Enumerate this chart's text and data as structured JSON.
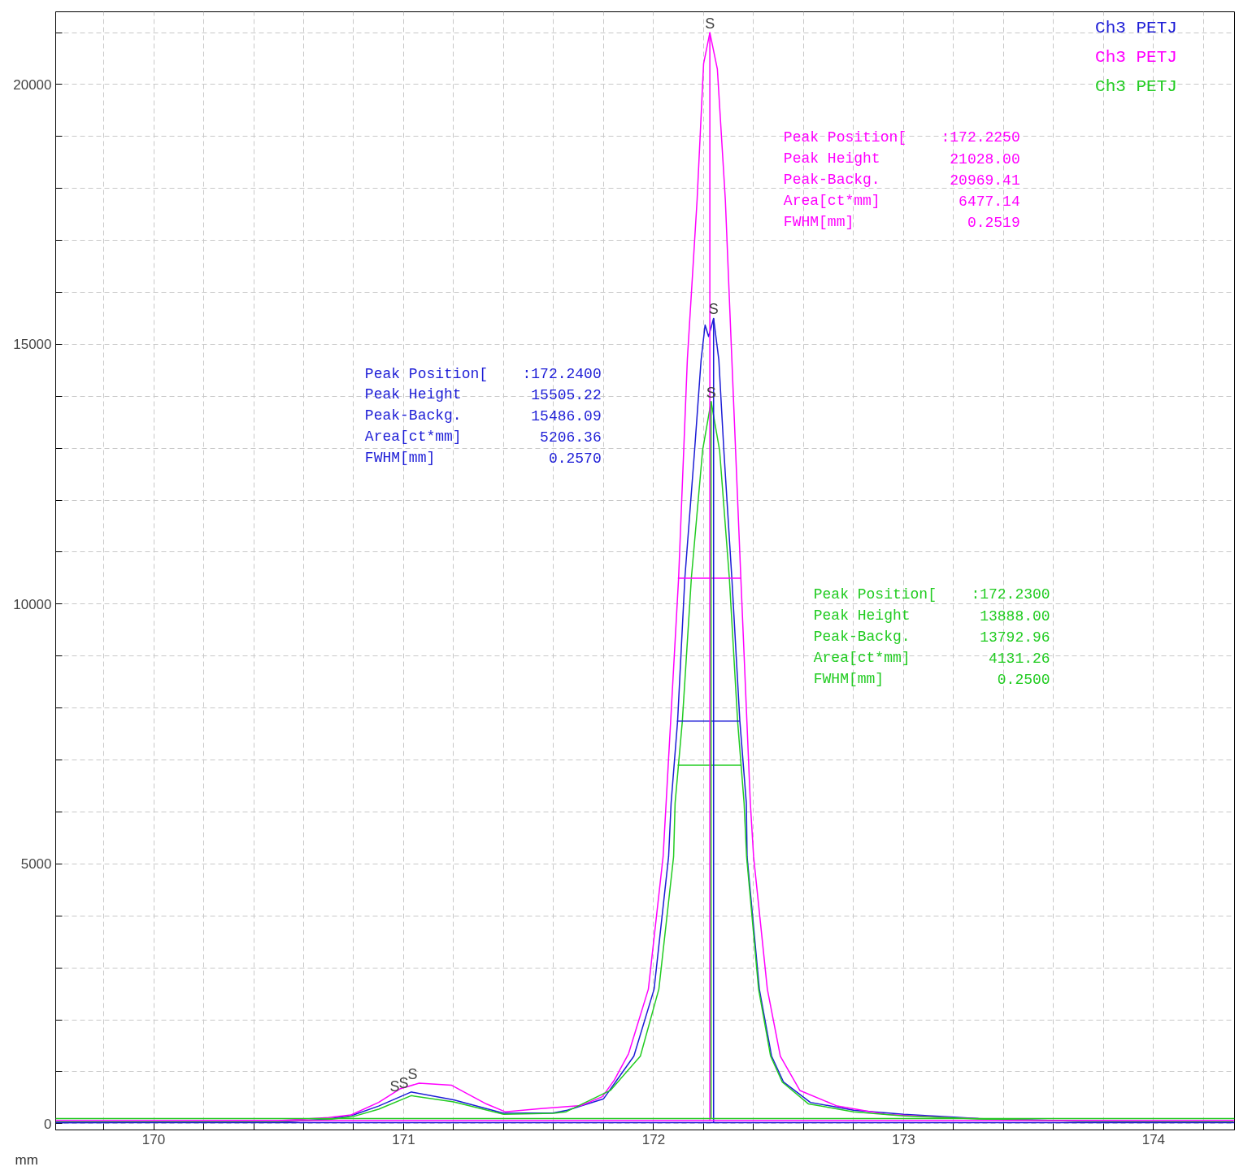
{
  "chart_data": {
    "type": "line",
    "xlabel": "mm",
    "legend": "top right",
    "grid": true,
    "xlim": [
      169.608,
      174.324
    ],
    "ylim": [
      -120,
      21400
    ],
    "xticks": [
      {
        "value": 169.8,
        "label": null
      },
      170,
      {
        "value": 170.2,
        "label": null
      },
      {
        "value": 170.4,
        "label": null
      },
      {
        "value": 170.6,
        "label": null
      },
      {
        "value": 170.8,
        "label": null
      },
      171,
      {
        "value": 171.2,
        "label": null
      },
      {
        "value": 171.4,
        "label": null
      },
      {
        "value": 171.6,
        "label": null
      },
      {
        "value": 171.8,
        "label": null
      },
      172,
      {
        "value": 172.2,
        "label": null
      },
      {
        "value": 172.4,
        "label": null
      },
      {
        "value": 172.6,
        "label": null
      },
      {
        "value": 172.8,
        "label": null
      },
      173,
      {
        "value": 173.2,
        "label": null
      },
      {
        "value": 173.4,
        "label": null
      },
      {
        "value": 173.6,
        "label": null
      },
      {
        "value": 173.8,
        "label": null
      },
      174,
      {
        "value": 174.2,
        "label": null
      }
    ],
    "yticks": [
      0,
      {
        "value": 1000,
        "label": null
      },
      {
        "value": 2000,
        "label": null
      },
      {
        "value": 3000,
        "label": null
      },
      {
        "value": 4000,
        "label": null
      },
      5000,
      {
        "value": 6000,
        "label": null
      },
      {
        "value": 7000,
        "label": null
      },
      {
        "value": 8000,
        "label": null
      },
      {
        "value": 9000,
        "label": null
      },
      10000,
      {
        "value": 11000,
        "label": null
      },
      {
        "value": 12000,
        "label": null
      },
      {
        "value": 13000,
        "label": null
      },
      {
        "value": 14000,
        "label": null
      },
      15000,
      {
        "value": 16000,
        "label": null
      },
      {
        "value": 17000,
        "label": null
      },
      {
        "value": 18000,
        "label": null
      },
      {
        "value": 19000,
        "label": null
      },
      20000,
      {
        "value": 21000,
        "label": null
      }
    ],
    "series": [
      {
        "name": "Ch3  PETJ",
        "color": "#1c1cd6",
        "x": [
          169.61,
          170.5,
          170.7,
          170.8,
          170.9,
          171.03,
          171.2,
          171.4,
          171.6,
          171.655,
          171.8,
          171.921,
          172.002,
          172.06,
          172.07,
          172.096,
          172.125,
          172.164,
          172.19,
          172.206,
          172.22,
          172.24,
          172.261,
          172.281,
          172.313,
          172.345,
          172.371,
          172.374,
          172.423,
          172.472,
          172.52,
          172.627,
          172.8,
          173.0,
          173.3,
          173.7,
          174.32
        ],
        "values": [
          20,
          30,
          90,
          170,
          340,
          610,
          460,
          200,
          210,
          260,
          480,
          1300,
          2590,
          5140,
          6170,
          7750,
          10500,
          12960,
          14700,
          15370,
          15150,
          15500,
          14700,
          12960,
          10500,
          7750,
          6170,
          5140,
          2590,
          1300,
          800,
          410,
          260,
          180,
          100,
          50,
          30
        ]
      },
      {
        "name": "Ch3  PETJ",
        "color": "#ff00ff",
        "x": [
          169.61,
          170.5,
          170.7,
          170.79,
          170.9,
          170.985,
          171.062,
          171.192,
          171.331,
          171.406,
          171.549,
          171.71,
          171.795,
          171.843,
          171.9,
          171.979,
          172.038,
          172.05,
          172.1,
          172.135,
          172.174,
          172.2,
          172.225,
          172.255,
          172.287,
          172.313,
          172.349,
          172.387,
          172.4,
          172.455,
          172.507,
          172.585,
          172.734,
          172.928,
          173.2,
          173.5,
          174.0,
          174.32
        ],
        "values": [
          40,
          60,
          120,
          170,
          410,
          670,
          780,
          740,
          380,
          230,
          290,
          350,
          520,
          840,
          1350,
          2590,
          5140,
          6170,
          10500,
          14710,
          17780,
          20400,
          21000,
          20300,
          17780,
          14710,
          10500,
          6170,
          5140,
          2590,
          1300,
          640,
          340,
          180,
          110,
          70,
          50,
          50
        ]
      },
      {
        "name": "Ch3  PETJ",
        "color": "#22cc22",
        "x": [
          169.61,
          170.5,
          170.7,
          170.8,
          170.9,
          171.03,
          171.2,
          171.4,
          171.6,
          171.65,
          171.827,
          171.947,
          172.021,
          172.08,
          172.086,
          172.115,
          172.151,
          172.196,
          172.23,
          172.264,
          172.303,
          172.336,
          172.362,
          172.372,
          172.42,
          172.468,
          172.515,
          172.62,
          172.8,
          173.0,
          173.3,
          173.7,
          174.32
        ],
        "values": [
          40,
          40,
          80,
          140,
          280,
          540,
          420,
          180,
          200,
          230,
          640,
          1300,
          2590,
          5140,
          6170,
          7750,
          10500,
          12960,
          13900,
          12960,
          10500,
          7750,
          6170,
          5140,
          2590,
          1300,
          800,
          380,
          230,
          150,
          90,
          50,
          40
        ]
      },
      {
        "type": "line",
        "color": "#ff00ff",
        "x": [
          172.097,
          172.349
        ],
        "values": [
          10500,
          10500
        ]
      },
      {
        "type": "line",
        "color": "#1c1cd6",
        "x": [
          172.093,
          172.345
        ],
        "values": [
          7750,
          7750
        ]
      },
      {
        "type": "line",
        "color": "#22cc22",
        "x": [
          172.096,
          172.349
        ],
        "values": [
          6900,
          6900
        ]
      },
      {
        "type": "line",
        "color": "#ff00ff",
        "x": [
          172.225,
          172.225
        ],
        "values": [
          60,
          21000
        ]
      },
      {
        "type": "line",
        "color": "#1c1cd6",
        "x": [
          172.24,
          172.24
        ],
        "values": [
          20,
          15500
        ]
      },
      {
        "type": "line",
        "color": "#22cc22",
        "x": [
          172.23,
          172.23
        ],
        "values": [
          100,
          13900
        ]
      }
    ],
    "ref_lines": [
      {
        "axis": "y",
        "value": 100,
        "label": null,
        "color": "#22cc22"
      },
      {
        "axis": "y",
        "value": 60,
        "label": null,
        "color": "#ff00ff"
      },
      {
        "axis": "y",
        "value": 20,
        "label": null,
        "color": "#1c1cd6"
      }
    ],
    "annotations": [
      {
        "text": "S",
        "x": 172.225,
        "y": 21000
      },
      {
        "text": "S",
        "x": 172.24,
        "y": 15500
      },
      {
        "text": "S",
        "x": 172.23,
        "y": 13900
      },
      {
        "text": "S",
        "x": 171.0,
        "y": 780
      },
      {
        "text": "S",
        "x": 171.0,
        "y": 610
      },
      {
        "text": "S",
        "x": 171.0,
        "y": 540
      },
      "Peak Position[",
      ":172.2400",
      "Peak Height",
      "15505.22",
      "Peak-Backg.",
      "15486.09",
      "Area[ct*mm]",
      "5206.36",
      "FWHM[mm]",
      "0.2570",
      "Peak Position[",
      ":172.2250",
      "Peak Height",
      "21028.00",
      "Peak-Backg.",
      "20969.41",
      "Area[ct*mm]",
      "6477.14",
      "FWHM[mm]",
      "0.2519",
      "Peak Position[",
      ":172.2300",
      "Peak Height",
      "13888.00",
      "Peak-Backg.",
      "13792.96",
      "Area[ct*mm]",
      "4131.26",
      "FWHM[mm]",
      "0.2500"
    ]
  }
}
